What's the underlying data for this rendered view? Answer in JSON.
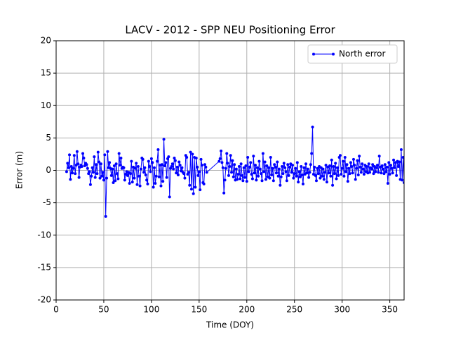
{
  "chart_data": {
    "type": "line",
    "title": "LACV - 2012 - SPP NEU Positioning Error",
    "xlabel": "Time (DOY)",
    "ylabel": "Error (m)",
    "xlim": [
      0,
      365
    ],
    "xticks": [
      0,
      50,
      100,
      150,
      200,
      250,
      300,
      350
    ],
    "ylim": [
      -20,
      20
    ],
    "yticks": [
      -20,
      -15,
      -10,
      -5,
      0,
      5,
      10,
      15,
      20
    ],
    "grid": true,
    "legend": "upper right",
    "x": [
      11,
      12,
      13,
      14,
      15,
      16,
      17,
      18,
      19,
      20,
      21,
      22,
      23,
      24,
      25,
      26,
      27,
      28,
      29,
      30,
      31,
      32,
      33,
      34,
      35,
      36,
      37,
      38,
      39,
      40,
      41,
      42,
      43,
      44,
      45,
      46,
      47,
      48,
      49,
      50,
      51,
      52,
      53,
      54,
      55,
      56,
      57,
      58,
      59,
      60,
      61,
      62,
      63,
      64,
      65,
      66,
      67,
      68,
      69,
      70,
      71,
      72,
      73,
      74,
      75,
      76,
      77,
      78,
      79,
      80,
      81,
      82,
      83,
      84,
      85,
      86,
      87,
      88,
      89,
      90,
      91,
      92,
      93,
      94,
      95,
      96,
      97,
      98,
      99,
      100,
      101,
      102,
      103,
      104,
      105,
      106,
      107,
      108,
      109,
      110,
      111,
      112,
      113,
      114,
      115,
      116,
      117,
      118,
      119,
      120,
      121,
      122,
      123,
      124,
      125,
      126,
      127,
      128,
      129,
      130,
      131,
      132,
      133,
      134,
      135,
      136,
      137,
      138,
      139,
      140,
      141,
      142,
      143,
      144,
      145,
      146,
      147,
      148,
      149,
      150,
      151,
      152,
      153,
      154,
      155,
      156,
      157,
      158,
      171,
      172,
      173,
      174,
      175,
      176,
      177,
      178,
      179,
      180,
      181,
      182,
      183,
      184,
      185,
      186,
      187,
      188,
      189,
      190,
      191,
      192,
      193,
      194,
      195,
      196,
      197,
      198,
      199,
      200,
      201,
      202,
      203,
      204,
      205,
      206,
      207,
      208,
      209,
      210,
      211,
      212,
      213,
      214,
      215,
      216,
      217,
      218,
      219,
      220,
      221,
      222,
      223,
      224,
      225,
      226,
      227,
      228,
      229,
      230,
      231,
      232,
      233,
      234,
      235,
      236,
      237,
      238,
      239,
      240,
      241,
      242,
      243,
      244,
      245,
      246,
      247,
      248,
      249,
      250,
      251,
      252,
      253,
      254,
      255,
      256,
      257,
      258,
      259,
      260,
      261,
      262,
      263,
      264,
      265,
      266,
      267,
      268,
      269,
      270,
      271,
      272,
      273,
      274,
      275,
      276,
      277,
      278,
      279,
      280,
      281,
      282,
      283,
      284,
      285,
      286,
      287,
      288,
      289,
      290,
      291,
      292,
      293,
      294,
      295,
      296,
      297,
      298,
      299,
      300,
      301,
      302,
      303,
      304,
      305,
      306,
      307,
      308,
      309,
      310,
      311,
      312,
      313,
      314,
      315,
      316,
      317,
      318,
      319,
      320,
      321,
      322,
      323,
      324,
      325,
      326,
      327,
      328,
      329,
      330,
      331,
      332,
      333,
      334,
      335,
      336,
      337,
      338,
      339,
      340,
      341,
      342,
      343,
      344,
      345,
      346,
      347,
      348,
      349,
      350,
      351,
      352,
      353,
      354,
      355,
      356,
      357,
      358,
      359,
      360,
      361,
      362,
      363,
      364,
      365
    ],
    "series": [
      {
        "name": "North error",
        "color": "#0000ff",
        "values": [
          -0.2,
          1.1,
          0.4,
          2.4,
          -1.4,
          0.6,
          -0.4,
          0.3,
          2.3,
          -0.5,
          0.8,
          2.9,
          1.0,
          -1.1,
          0.5,
          0.8,
          0.6,
          2.6,
          1.9,
          0.7,
          1.1,
          0.9,
          0.3,
          -0.5,
          -0.2,
          -2.2,
          -0.9,
          0.4,
          -0.3,
          2.1,
          -1.1,
          0.9,
          -0.5,
          2.8,
          1.3,
          -1.2,
          1.0,
          -0.9,
          -0.3,
          -1.5,
          2.4,
          -7.1,
          -1.2,
          2.9,
          0.4,
          1.2,
          0.3,
          -0.8,
          0.2,
          -1.9,
          0.7,
          -1.6,
          1.0,
          -0.5,
          -1.3,
          2.6,
          0.8,
          1.9,
          0.3,
          0.5,
          0.4,
          -1.5,
          -0.6,
          -0.2,
          -0.8,
          -0.3,
          -2.0,
          -0.5,
          1.4,
          -1.8,
          0.5,
          -1.2,
          0.3,
          1.1,
          -2.2,
          0.6,
          -0.9,
          -2.4,
          0.2,
          1.9,
          1.7,
          -0.3,
          0.4,
          -0.7,
          -1.5,
          -2.1,
          1.4,
          0.6,
          -0.2,
          1.8,
          1.2,
          -2.6,
          0.4,
          -2.0,
          -0.9,
          1.4,
          3.2,
          -1.0,
          0.8,
          -2.4,
          0.9,
          -1.7,
          4.8,
          0.7,
          1.2,
          -1.1,
          1.8,
          2.1,
          -4.1,
          0.3,
          0.6,
          1.0,
          0.2,
          1.9,
          1.5,
          -0.4,
          0.5,
          -0.7,
          1.3,
          0.8,
          -0.1,
          0.4,
          -0.3,
          -0.5,
          -1.2,
          2.3,
          2.0,
          -0.6,
          -0.3,
          -2.3,
          2.8,
          -2.9,
          2.5,
          -3.6,
          2.0,
          -2.6,
          1.9,
          0.5,
          -0.8,
          -0.2,
          -3.0,
          1.7,
          0.8,
          -1.9,
          -2.1,
          0.9,
          0.5,
          -0.3,
          1.4,
          1.8,
          3.0,
          1.2,
          0.4,
          -3.5,
          -1.5,
          0.3,
          2.6,
          1.1,
          -0.8,
          0.6,
          2.3,
          -0.3,
          1.5,
          -1.0,
          0.9,
          -1.5,
          0.2,
          -1.4,
          -0.6,
          0.6,
          -1.3,
          1.0,
          -0.8,
          -1.6,
          0.4,
          -1.1,
          0.7,
          -1.7,
          2.0,
          -0.2,
          0.5,
          1.2,
          -0.6,
          -1.3,
          2.2,
          -0.4,
          0.8,
          -1.5,
          0.4,
          -0.9,
          1.4,
          0.2,
          -0.5,
          -1.6,
          2.6,
          -0.2,
          1.3,
          -1.4,
          0.7,
          -1.0,
          0.4,
          -1.2,
          2.0,
          -0.7,
          0.3,
          -1.6,
          0.9,
          0.5,
          -0.4,
          1.3,
          -0.9,
          0.2,
          -2.3,
          -1.0,
          0.6,
          -0.5,
          1.1,
          0.4,
          -0.2,
          -1.6,
          0.9,
          -0.8,
          0.5,
          1.0,
          -0.3,
          0.8,
          -1.2,
          -0.5,
          0.3,
          -0.9,
          1.2,
          -1.8,
          -0.2,
          -1.0,
          0.6,
          -0.7,
          -2.1,
          0.4,
          -0.6,
          1.0,
          -0.4,
          0.2,
          -1.1,
          -0.3,
          0.9,
          2.6,
          6.7,
          -0.6,
          0.5,
          -0.8,
          -1.6,
          0.3,
          -0.5,
          0.6,
          -1.2,
          0.4,
          -0.9,
          0.2,
          -1.4,
          -0.3,
          0.8,
          -1.8,
          0.5,
          -0.4,
          0.7,
          -0.9,
          1.6,
          -2.3,
          0.6,
          -0.5,
          1.1,
          -1.3,
          0.4,
          -0.8,
          2.0,
          2.3,
          -0.6,
          0.3,
          1.4,
          -0.9,
          2.0,
          -0.2,
          0.9,
          -1.7,
          0.3,
          -0.5,
          1.2,
          0.6,
          -0.4,
          1.7,
          0.8,
          -1.4,
          0.3,
          1.5,
          -0.7,
          2.2,
          0.5,
          -0.3,
          1.0,
          0.2,
          -0.6,
          0.8,
          -0.2,
          0.6,
          -0.4,
          1.0,
          -0.3,
          0.4,
          0.2,
          0.9,
          -0.5,
          0.6,
          -0.2,
          0.4,
          0.8,
          -0.3,
          2.2,
          0.5,
          -0.4,
          0.7,
          0.2,
          -0.5,
          0.9,
          -0.2,
          0.5,
          -2.0,
          1.2,
          -0.6,
          0.8,
          0.3,
          -0.4,
          1.6,
          0.4,
          1.2,
          -0.8,
          1.4,
          0.6,
          1.3,
          -1.4,
          3.2,
          -1.5,
          2.0,
          -1.9
        ]
      }
    ]
  }
}
